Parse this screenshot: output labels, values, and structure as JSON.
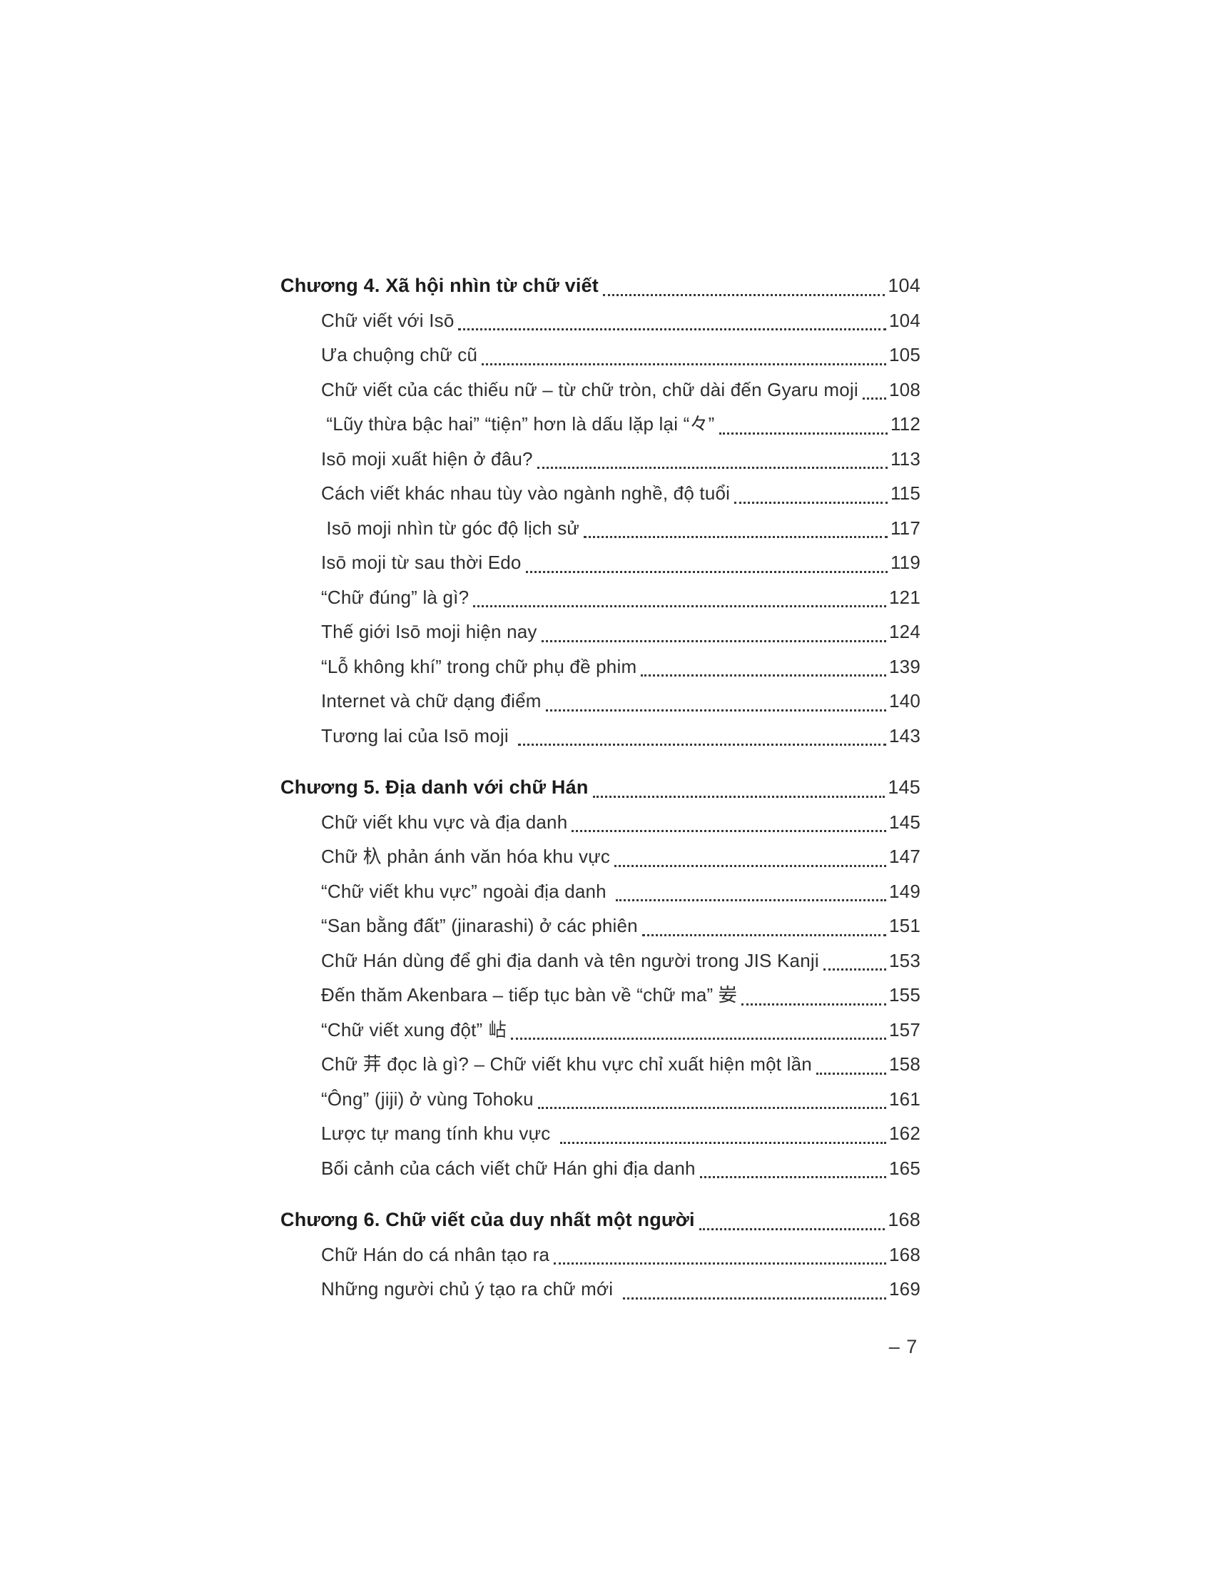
{
  "toc": {
    "entries": [
      {
        "level": "chapter",
        "title": "Chương 4. Xã hội nhìn từ chữ viết",
        "page": "104"
      },
      {
        "level": "sub",
        "title": "Chữ viết với Isō",
        "page": "104"
      },
      {
        "level": "sub",
        "title": "Ưa chuộng chữ cũ",
        "page": "105"
      },
      {
        "level": "sub",
        "title": "Chữ viết của các thiếu nữ – từ chữ tròn, chữ dài đến Gyaru moji",
        "page": "108"
      },
      {
        "level": "sub",
        "title": " “Lũy thừa bậc hai” “tiện” hơn là dấu lặp lại “々”",
        "page": "112"
      },
      {
        "level": "sub",
        "title": "Isō moji xuất hiện ở đâu?",
        "page": "113"
      },
      {
        "level": "sub",
        "title": "Cách viết khác nhau tùy vào ngành nghề, độ tuổi",
        "page": "115"
      },
      {
        "level": "sub",
        "title": " Isō moji nhìn từ góc độ lịch sử",
        "page": "117"
      },
      {
        "level": "sub",
        "title": "Isō moji từ sau thời Edo",
        "page": "119"
      },
      {
        "level": "sub",
        "title": "“Chữ đúng” là gì?",
        "page": "121"
      },
      {
        "level": "sub",
        "title": "Thế giới Isō moji hiện nay",
        "page": "124"
      },
      {
        "level": "sub",
        "title": "“Lỗ không khí” trong chữ phụ đề phim",
        "page": "139"
      },
      {
        "level": "sub",
        "title": "Internet và chữ dạng điểm",
        "page": "140"
      },
      {
        "level": "sub",
        "title": "Tương lai của Isō moji ",
        "page": "143"
      },
      {
        "level": "chapter",
        "title": "Chương 5. Địa danh với chữ Hán",
        "page": "145"
      },
      {
        "level": "sub",
        "title": "Chữ viết khu vực và địa danh",
        "page": "145"
      },
      {
        "level": "sub",
        "title": "Chữ 杁 phản ánh văn hóa khu vực",
        "page": "147"
      },
      {
        "level": "sub",
        "title": "“Chữ viết khu vực” ngoài địa danh ",
        "page": "149"
      },
      {
        "level": "sub",
        "title": "“San bằng đất” (jinarashi) ở các phiên",
        "page": "151"
      },
      {
        "level": "sub",
        "title": "Chữ Hán dùng để ghi địa danh và tên người trong JIS Kanji",
        "page": "153"
      },
      {
        "level": "sub",
        "title": "Đến thăm Akenbara – tiếp tục bàn về “chữ ma” 妛",
        "page": "155"
      },
      {
        "level": "sub",
        "title": "“Chữ viết xung đột” 岾",
        "page": "157"
      },
      {
        "level": "sub",
        "title": "Chữ 茾 đọc là gì? – Chữ viết khu vực chỉ xuất hiện một lần",
        "page": "158"
      },
      {
        "level": "sub",
        "title": "“Ông” (jiji) ở vùng Tohoku",
        "page": "161"
      },
      {
        "level": "sub",
        "title": "Lược tự mang tính khu vực ",
        "page": "162"
      },
      {
        "level": "sub",
        "title": "Bối cảnh của cách viết chữ Hán ghi địa danh",
        "page": "165"
      },
      {
        "level": "chapter",
        "title": "Chương 6. Chữ viết của duy nhất một người",
        "page": "168"
      },
      {
        "level": "sub",
        "title": "Chữ Hán do cá nhân tạo ra",
        "page": "168"
      },
      {
        "level": "sub",
        "title": "Những người chủ ý tạo ra chữ mới ",
        "page": "169"
      }
    ]
  },
  "footer": {
    "page_label": "– 7"
  }
}
